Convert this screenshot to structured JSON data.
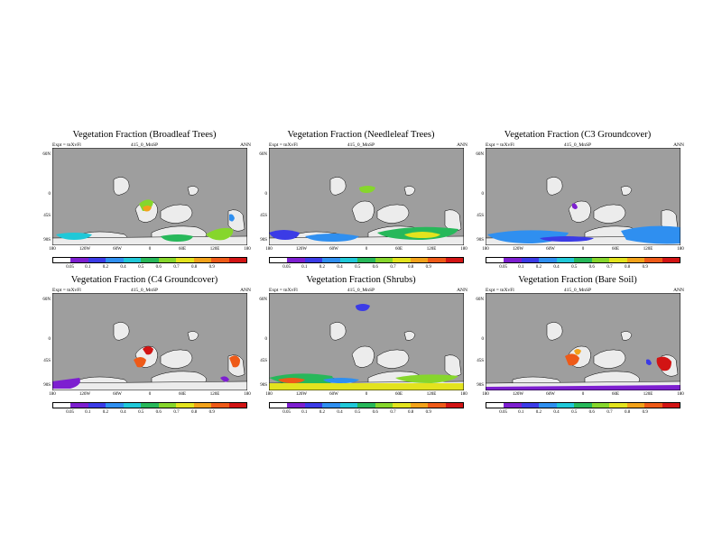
{
  "shared": {
    "expt_label": "Expt = tnXvFl",
    "run_label": "415_0_MnSP",
    "period_label": "ANN",
    "lat_ticks": [
      "60N",
      "0",
      "45S",
      "90S"
    ],
    "lon_ticks": [
      "180",
      "120W",
      "60W",
      "0",
      "60E",
      "120E",
      "180"
    ],
    "colorbar_ticks": [
      "0.05",
      "0.1",
      "0.2",
      "0.4",
      "0.5",
      "0.6",
      "0.7",
      "0.8",
      "0.9"
    ],
    "colorbar_colors": [
      "#ffffff",
      "#7d1fd0",
      "#3b3be6",
      "#2f8ff0",
      "#20c8d8",
      "#27b85a",
      "#86d62c",
      "#e3e31e",
      "#f2a21a",
      "#ee5a18",
      "#d21414"
    ],
    "background_color": "#9e9e9e",
    "land_color": "#ececec"
  },
  "panels": [
    {
      "title": "Vegetation Fraction (Broadleaf Trees)"
    },
    {
      "title": "Vegetation Fraction (Needleleaf Trees)"
    },
    {
      "title": "Vegetation Fraction (C3 Groundcover)"
    },
    {
      "title": "Vegetation Fraction (C4 Groundcover)"
    },
    {
      "title": "Vegetation Fraction (Shrubs)"
    },
    {
      "title": "Vegetation Fraction (Bare Soil)"
    }
  ]
}
